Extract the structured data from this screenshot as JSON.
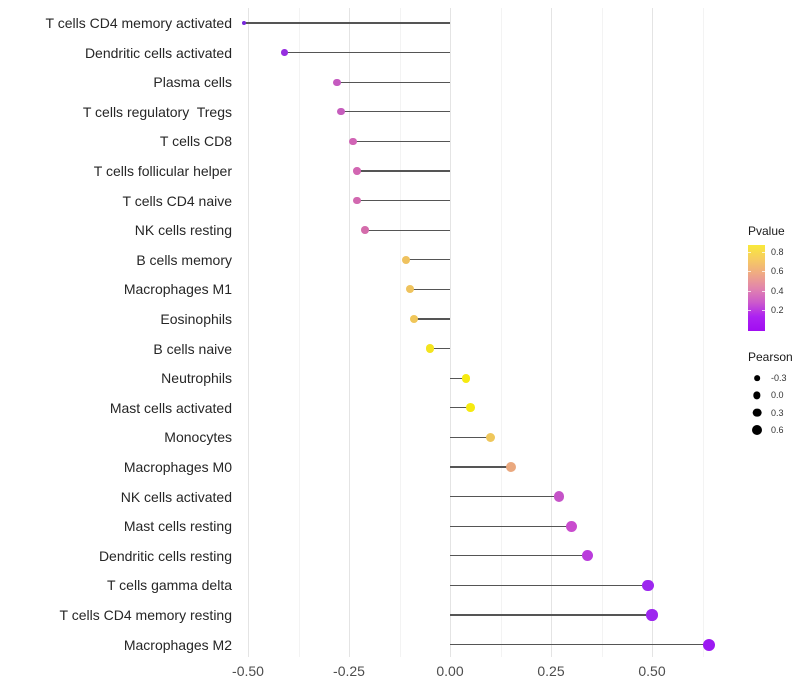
{
  "chart_data": {
    "type": "scatter",
    "subtype": "lollipop",
    "title": "",
    "xlabel": "",
    "ylabel": "",
    "x_ticks": [
      "-0.50",
      "-0.25",
      "0.00",
      "0.25",
      "0.50"
    ],
    "x_tick_values": [
      -0.5,
      -0.25,
      0,
      0.25,
      0.5
    ],
    "xlim": [
      -0.57,
      0.665
    ],
    "grid": "on",
    "legend_position": "right",
    "points": [
      {
        "label": "T cells CD4 memory activated",
        "pearson": -0.51,
        "color": "#7829db",
        "size": 4
      },
      {
        "label": "Dendritic cells activated",
        "pearson": -0.41,
        "color": "#962ee0",
        "size": 6.5
      },
      {
        "label": "Plasma cells",
        "pearson": -0.28,
        "color": "#c55ac0",
        "size": 7.3
      },
      {
        "label": "T cells regulatory  Tregs",
        "pearson": -0.27,
        "color": "#c65dbd",
        "size": 7.4
      },
      {
        "label": "T cells CD8",
        "pearson": -0.24,
        "color": "#d164b5",
        "size": 7.4
      },
      {
        "label": "T cells follicular helper",
        "pearson": -0.23,
        "color": "#d266b2",
        "size": 7.5
      },
      {
        "label": "T cells CD4 naive",
        "pearson": -0.23,
        "color": "#d268b0",
        "size": 7.5
      },
      {
        "label": "NK cells resting",
        "pearson": -0.21,
        "color": "#d46cab",
        "size": 7.7
      },
      {
        "label": "B cells memory",
        "pearson": -0.11,
        "color": "#efc25f",
        "size": 8
      },
      {
        "label": "Macrophages M1",
        "pearson": -0.1,
        "color": "#efc35d",
        "size": 8
      },
      {
        "label": "Eosinophils",
        "pearson": -0.09,
        "color": "#f0c659",
        "size": 8.1
      },
      {
        "label": "B cells naive",
        "pearson": -0.05,
        "color": "#f4e41e",
        "size": 8.3
      },
      {
        "label": "Neutrophils",
        "pearson": 0.04,
        "color": "#f6ea10",
        "size": 8.7
      },
      {
        "label": "Mast cells activated",
        "pearson": 0.05,
        "color": "#f6ea10",
        "size": 8.7
      },
      {
        "label": "Monocytes",
        "pearson": 0.1,
        "color": "#efc75b",
        "size": 9.3
      },
      {
        "label": "Macrophages M0",
        "pearson": 0.15,
        "color": "#eaa87e",
        "size": 10
      },
      {
        "label": "NK cells activated",
        "pearson": 0.27,
        "color": "#c553c8",
        "size": 10.6
      },
      {
        "label": "Mast cells resting",
        "pearson": 0.3,
        "color": "#c94cce",
        "size": 10.9
      },
      {
        "label": "Dendritic cells resting",
        "pearson": 0.34,
        "color": "#ba3cdc",
        "size": 11.1
      },
      {
        "label": "T cells gamma delta",
        "pearson": 0.49,
        "color": "#9d27ef",
        "size": 11.3
      },
      {
        "label": "T cells CD4 memory resting",
        "pearson": 0.5,
        "color": "#9d27ef",
        "size": 11.4
      },
      {
        "label": "Macrophages M2",
        "pearson": 0.64,
        "color": "#9c1af2",
        "size": 12
      }
    ],
    "legend": {
      "pvalue": {
        "title": "Pvalue",
        "ticks": [
          "0.8",
          "0.6",
          "0.4",
          "0.2"
        ],
        "gradient": [
          "#f9e93a",
          "#f6cb62",
          "#efa984",
          "#e285ac",
          "#cc5bcb",
          "#ac22f2",
          "#a10df2"
        ]
      },
      "pearson": {
        "title": "Pearson",
        "items": [
          {
            "label": "-0.3",
            "d": 5.7
          },
          {
            "label": "0.0",
            "d": 7.3
          },
          {
            "label": "0.3",
            "d": 8.7
          },
          {
            "label": "0.6",
            "d": 10
          }
        ]
      }
    },
    "colors": {
      "stem": "#555555",
      "grid_major": "#e4e4e4",
      "grid_minor": "#f3f3f3",
      "background": "#ffffff"
    }
  }
}
